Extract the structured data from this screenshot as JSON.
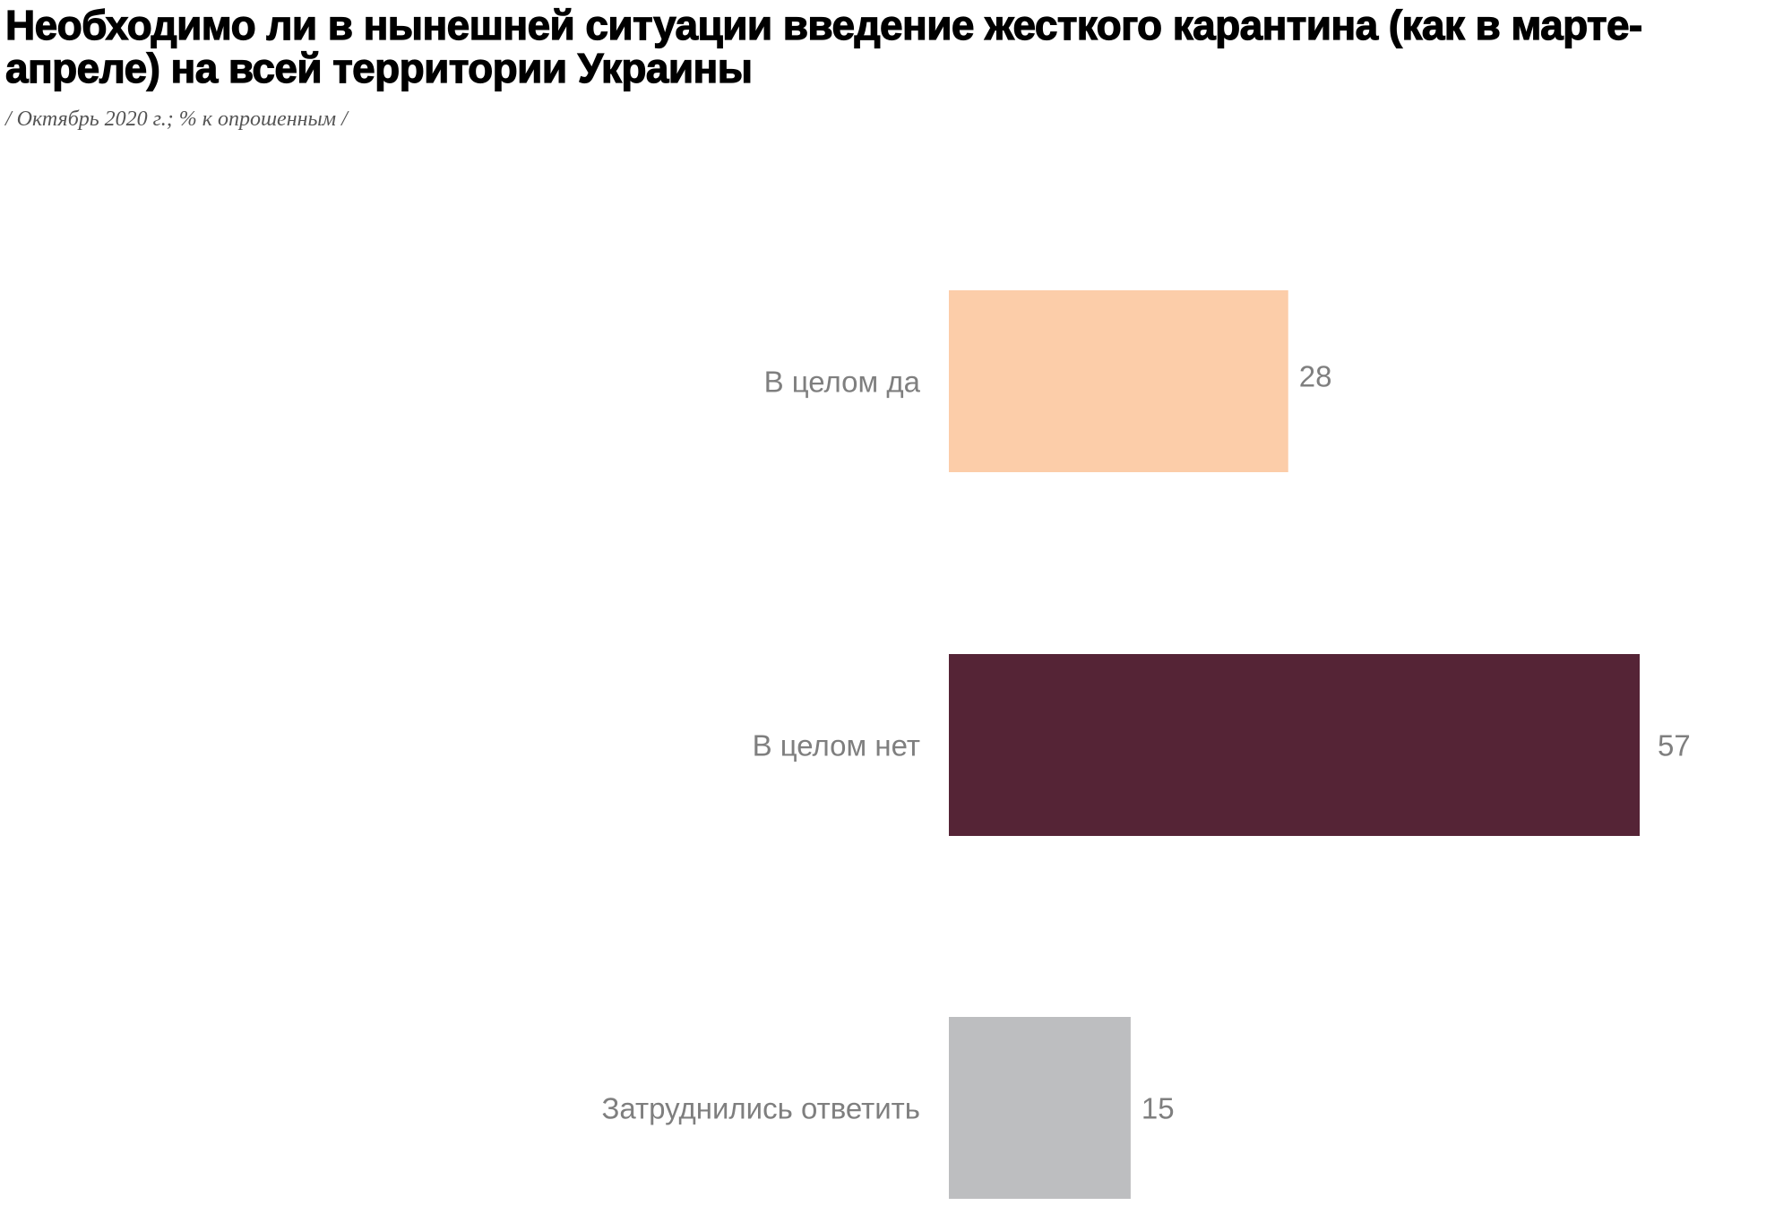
{
  "chart_data": {
    "type": "bar",
    "orientation": "horizontal",
    "title": "Необходимо ли в нынешней ситуации введение жесткого карантина (как в марте-апреле) на всей территории Украины",
    "subtitle": "/ Октябрь 2020 г.; % к опрошенным /",
    "categories": [
      "В целом да",
      "В целом нет",
      "Затруднились ответить"
    ],
    "values": [
      28,
      57,
      15
    ],
    "colors": [
      "#FCCDA9",
      "#552436",
      "#BDBEC0"
    ],
    "xlim": [
      0,
      57
    ],
    "grid": false,
    "legend": "none",
    "data_labels": true
  }
}
